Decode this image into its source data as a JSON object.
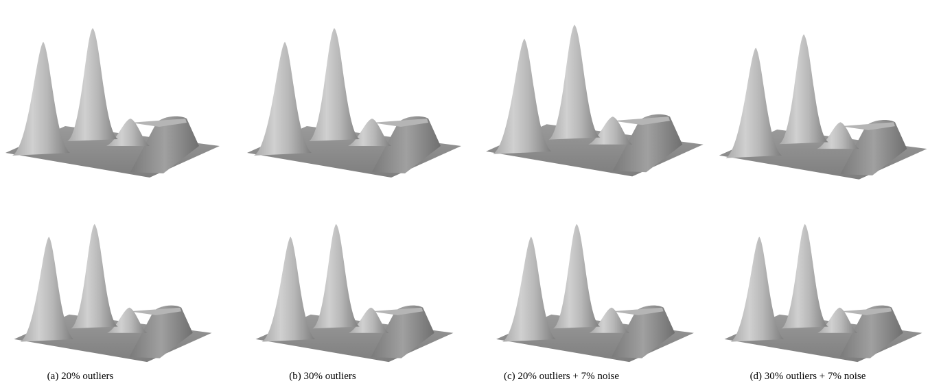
{
  "figure": {
    "captions": [
      "(a) 20% outliers",
      "(b) 30% outliers",
      "(c) 20% outliers + 7% noise",
      "(d) 30% outliers + 7% noise"
    ]
  }
}
